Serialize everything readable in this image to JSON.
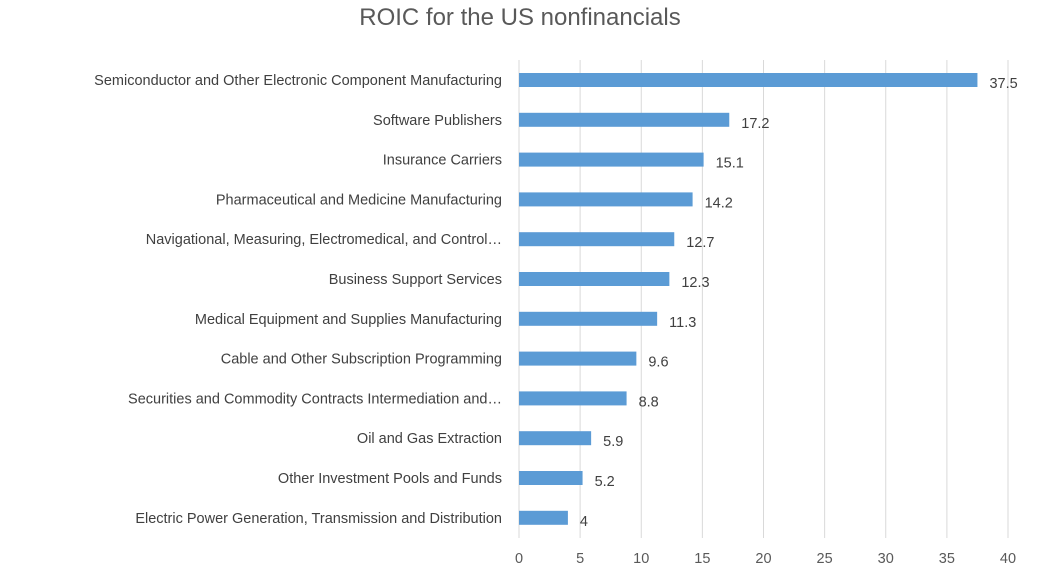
{
  "chart_data": {
    "type": "bar",
    "orientation": "horizontal",
    "title": "ROIC for the US nonfinancials",
    "xlabel": "",
    "ylabel": "",
    "categories": [
      "Semiconductor and Other Electronic Component Manufacturing",
      "Software Publishers",
      "Insurance Carriers",
      "Pharmaceutical and Medicine Manufacturing",
      "Navigational, Measuring, Electromedical, and Control…",
      "Business Support Services",
      "Medical Equipment and Supplies Manufacturing",
      "Cable and Other Subscription Programming",
      "Securities and Commodity Contracts Intermediation and…",
      "Oil and Gas Extraction",
      "Other Investment Pools and Funds",
      "Electric Power Generation, Transmission and Distribution"
    ],
    "values": [
      37.5,
      17.2,
      15.1,
      14.2,
      12.7,
      12.3,
      11.3,
      9.6,
      8.8,
      5.9,
      5.2,
      4
    ],
    "value_labels": [
      "37.5",
      "17.2",
      "15.1",
      "14.2",
      "12.7",
      "12.3",
      "11.3",
      "9.6",
      "8.8",
      "5.9",
      "5.2",
      "4"
    ],
    "xlim": [
      0,
      40
    ],
    "ticks": [
      0,
      5,
      10,
      15,
      20,
      25,
      30,
      35,
      40
    ],
    "grid": "vertical",
    "legend": "none",
    "bar_color": "#5b9bd5",
    "grid_color": "#d9d9d9"
  }
}
